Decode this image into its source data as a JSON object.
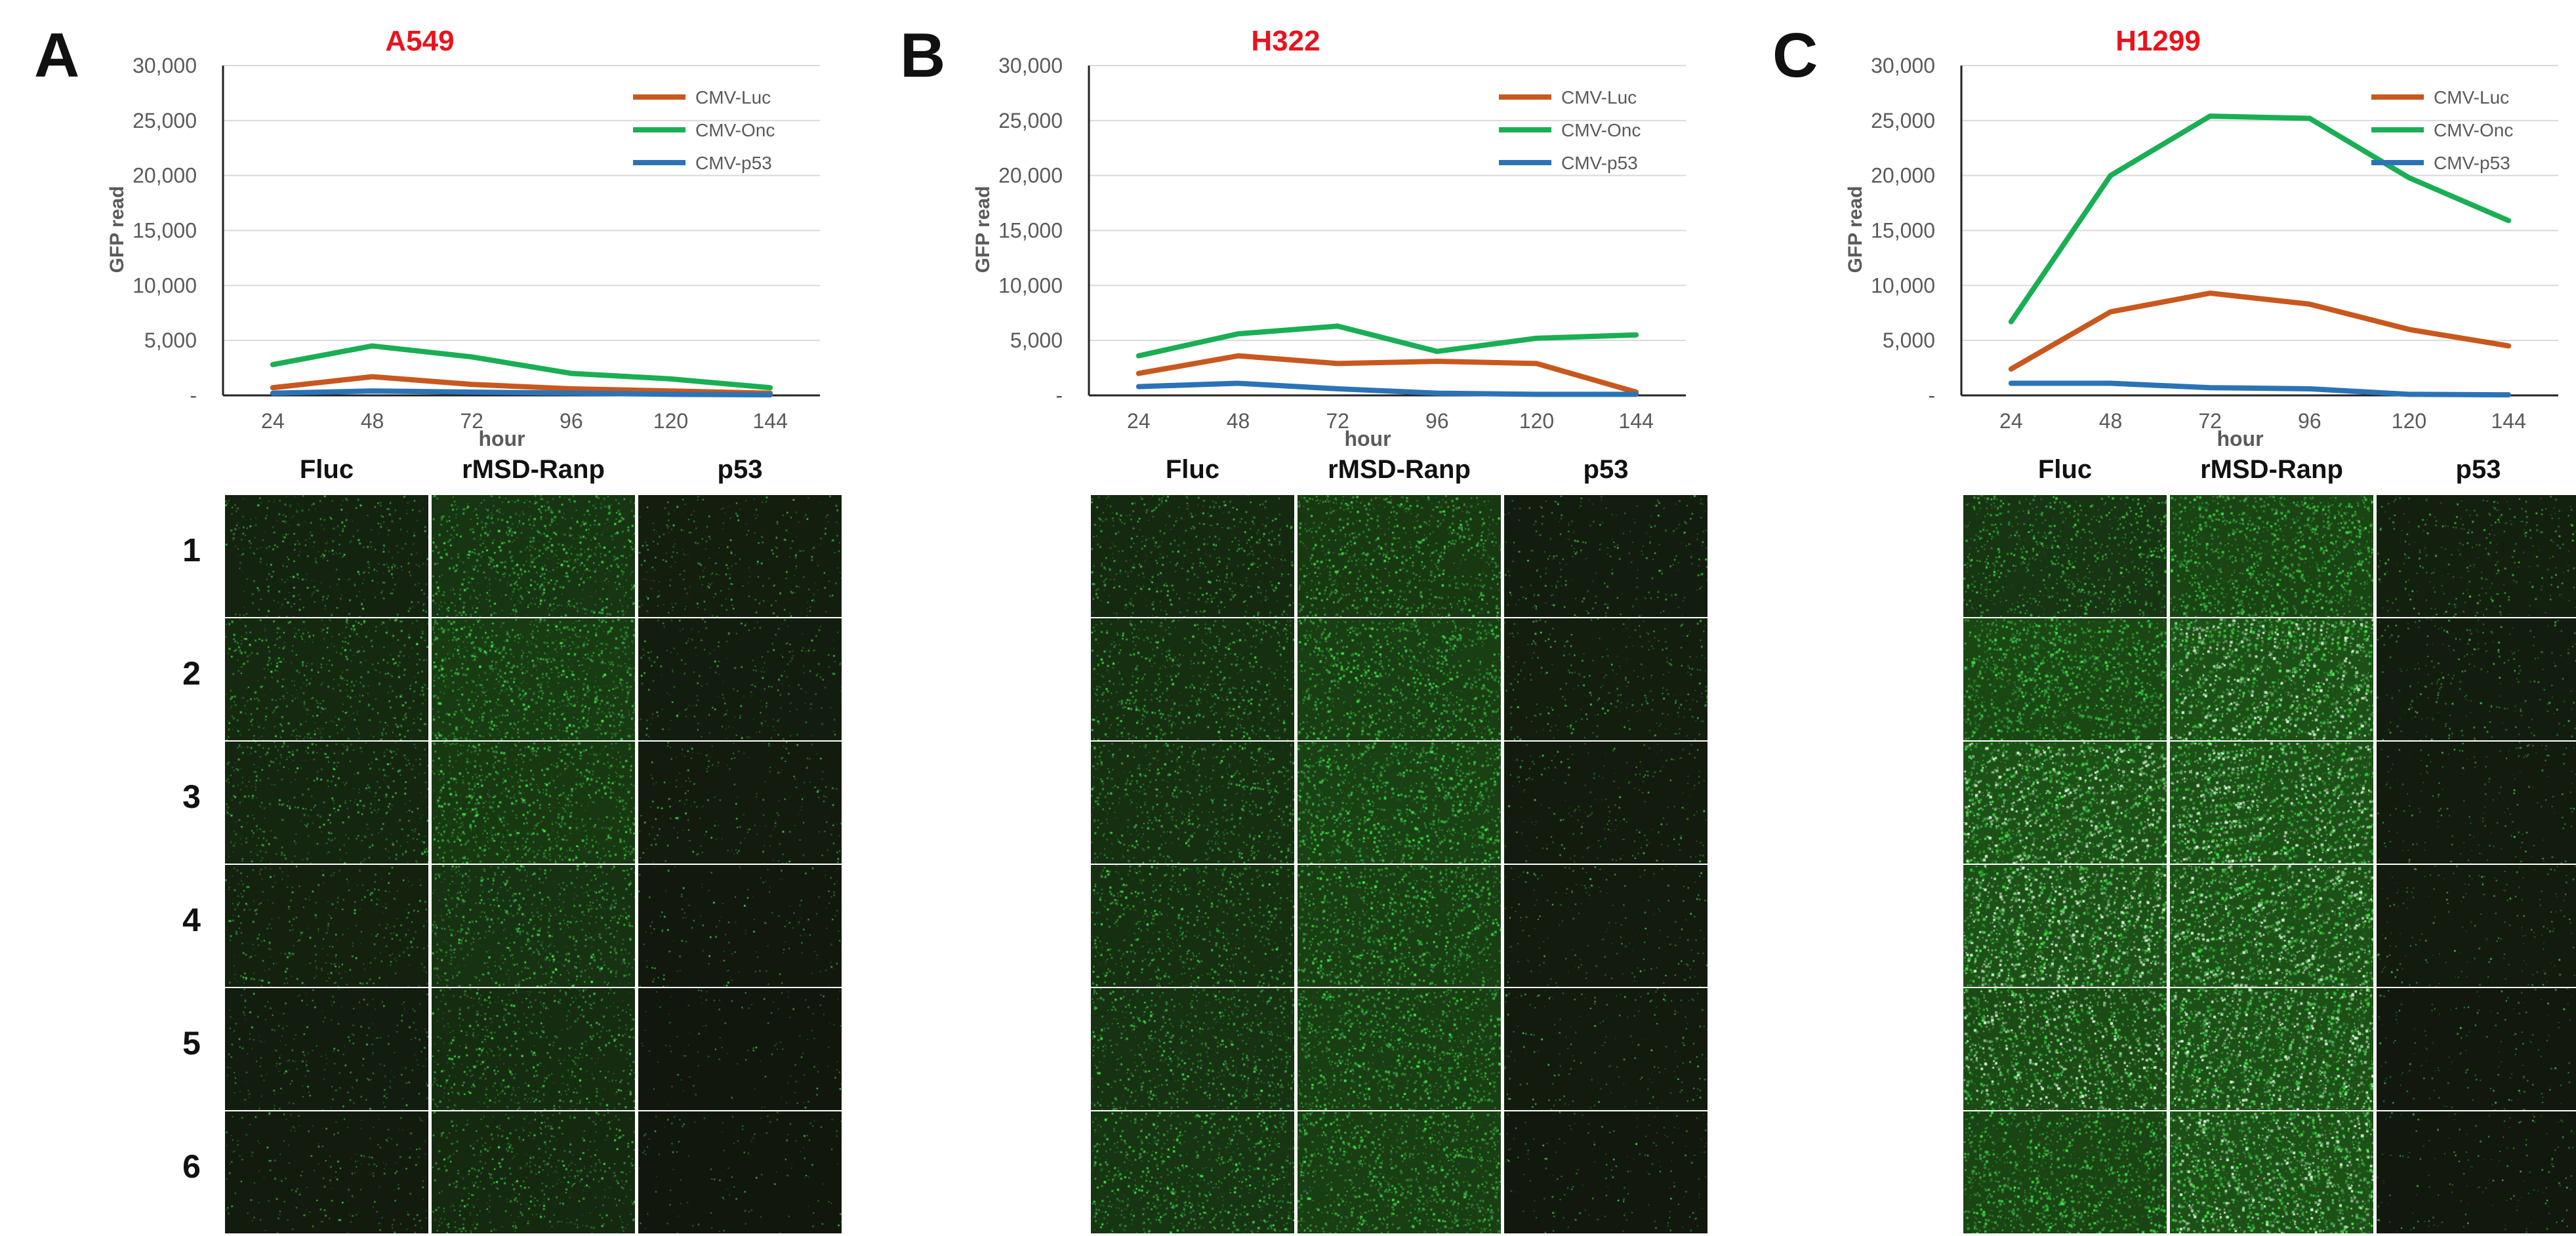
{
  "colors": {
    "luc": "#c8581e",
    "onc": "#1aae55",
    "p53": "#2b73b6",
    "title": "#e8141c",
    "grid": "#d9d9d9",
    "tick": "#5a5a5a"
  },
  "shared": {
    "col_labels": [
      "Fluc",
      "rMSD-Ranp",
      "p53"
    ],
    "row_labels": [
      "1",
      "2",
      "3",
      "4",
      "5",
      "6"
    ]
  },
  "panels": [
    {
      "letter": "A",
      "title": "A549",
      "brightness": [
        [
          0.25,
          0.55,
          0.18
        ],
        [
          0.35,
          0.65,
          0.15
        ],
        [
          0.3,
          0.6,
          0.12
        ],
        [
          0.22,
          0.5,
          0.08
        ],
        [
          0.15,
          0.4,
          0.05
        ],
        [
          0.12,
          0.35,
          0.05
        ]
      ]
    },
    {
      "letter": "B",
      "title": "H322",
      "brightness": [
        [
          0.35,
          0.6,
          0.15
        ],
        [
          0.45,
          0.7,
          0.18
        ],
        [
          0.45,
          0.75,
          0.12
        ],
        [
          0.45,
          0.7,
          0.1
        ],
        [
          0.5,
          0.7,
          0.1
        ],
        [
          0.55,
          0.7,
          0.08
        ]
      ]
    },
    {
      "letter": "C",
      "title": "H1299",
      "brightness": [
        [
          0.55,
          0.8,
          0.2
        ],
        [
          0.85,
          1.0,
          0.15
        ],
        [
          1.0,
          1.0,
          0.1
        ],
        [
          1.0,
          1.0,
          0.1
        ],
        [
          0.9,
          1.0,
          0.08
        ],
        [
          0.8,
          1.0,
          0.08
        ]
      ]
    }
  ],
  "chart_data": [
    {
      "type": "line",
      "title": "A549",
      "xlabel": "hour",
      "ylabel": "GFP read",
      "categories": [
        "24",
        "48",
        "72",
        "96",
        "120",
        "144"
      ],
      "yticks": [
        "-",
        "5,000",
        "10,000",
        "15,000",
        "20,000",
        "25,000",
        "30,000"
      ],
      "ylim": [
        0,
        30000
      ],
      "grid": true,
      "legend": "top-right",
      "series": [
        {
          "name": "CMV-Luc",
          "values": [
            700,
            1700,
            1000,
            600,
            400,
            200
          ]
        },
        {
          "name": "CMV-Onc",
          "values": [
            2800,
            4500,
            3500,
            2000,
            1500,
            700
          ]
        },
        {
          "name": "CMV-p53",
          "values": [
            200,
            400,
            300,
            200,
            100,
            50
          ]
        }
      ]
    },
    {
      "type": "line",
      "title": "H322",
      "xlabel": "hour",
      "ylabel": "GFP read",
      "categories": [
        "24",
        "48",
        "72",
        "96",
        "120",
        "144"
      ],
      "yticks": [
        "-",
        "5,000",
        "10,000",
        "15,000",
        "20,000",
        "25,000",
        "30,000"
      ],
      "ylim": [
        0,
        30000
      ],
      "grid": true,
      "legend": "top-right",
      "series": [
        {
          "name": "CMV-Luc",
          "values": [
            2000,
            3600,
            2900,
            3100,
            2900,
            300
          ]
        },
        {
          "name": "CMV-Onc",
          "values": [
            3600,
            5600,
            6300,
            4000,
            5200,
            5500
          ]
        },
        {
          "name": "CMV-p53",
          "values": [
            800,
            1100,
            600,
            200,
            100,
            100
          ]
        }
      ]
    },
    {
      "type": "line",
      "title": "H1299",
      "xlabel": "hour",
      "ylabel": "GFP read",
      "categories": [
        "24",
        "48",
        "72",
        "96",
        "120",
        "144"
      ],
      "yticks": [
        "-",
        "5,000",
        "10,000",
        "15,000",
        "20,000",
        "25,000",
        "30,000"
      ],
      "ylim": [
        0,
        30000
      ],
      "grid": true,
      "legend": "top-right",
      "series": [
        {
          "name": "CMV-Luc",
          "values": [
            2400,
            7600,
            9300,
            8300,
            6000,
            4500
          ]
        },
        {
          "name": "CMV-Onc",
          "values": [
            6700,
            20000,
            25400,
            25200,
            19800,
            15900
          ]
        },
        {
          "name": "CMV-p53",
          "values": [
            1100,
            1100,
            700,
            600,
            100,
            50
          ]
        }
      ]
    }
  ]
}
